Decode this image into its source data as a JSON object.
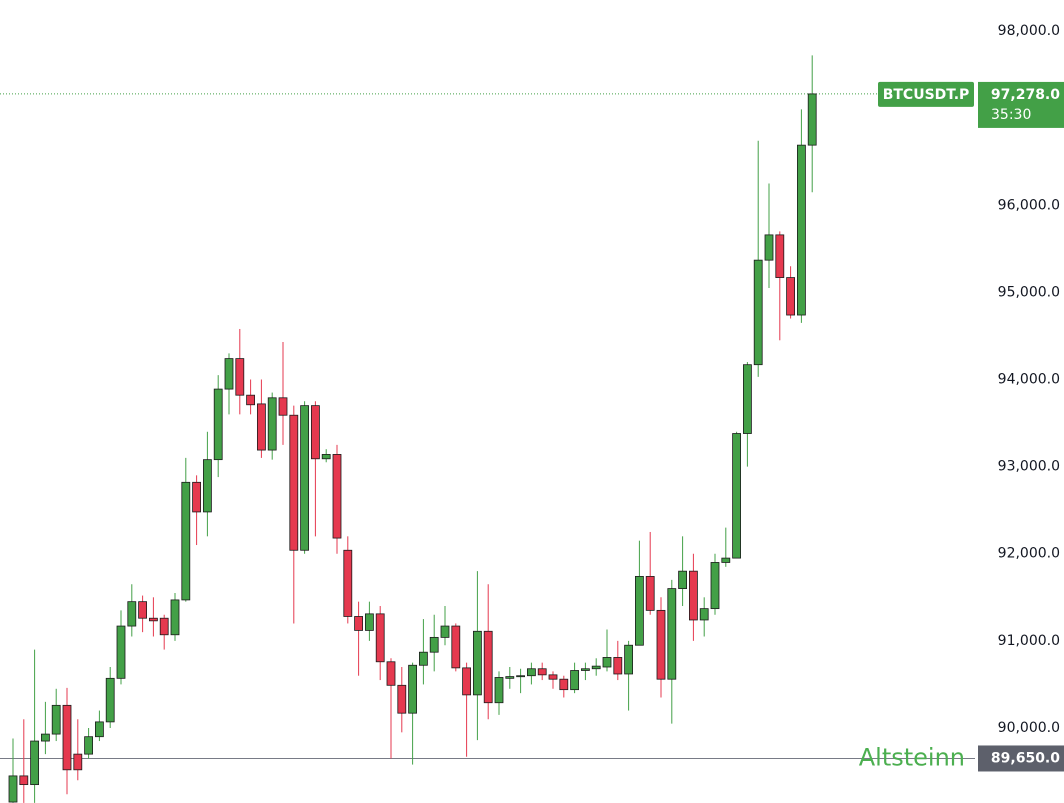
{
  "chart_data": {
    "type": "candlestick",
    "symbol": "BTCUSDT.P",
    "last_price": {
      "value": 97278,
      "label": "97,278.0"
    },
    "countdown": "35:30",
    "ylim": [
      89139,
      98356
    ],
    "yticks": [
      {
        "value": 90000,
        "label": "90,000.0"
      },
      {
        "value": 91000,
        "label": "91,000.0"
      },
      {
        "value": 92000,
        "label": "92,000.0"
      },
      {
        "value": 93000,
        "label": "93,000.0"
      },
      {
        "value": 94000,
        "label": "94,000.0"
      },
      {
        "value": 95000,
        "label": "95,000.0"
      },
      {
        "value": 96000,
        "label": "96,000.0"
      },
      {
        "value": 98000,
        "label": "98,000.0"
      }
    ],
    "colors": {
      "up": "#43a047",
      "down": "#e5394f"
    },
    "open": [
      89150,
      89450,
      89350,
      89850,
      89930,
      90260,
      89700,
      89700,
      89900,
      90070,
      90570,
      91170,
      91450,
      91260,
      91260,
      91070,
      91470,
      92820,
      92480,
      93080,
      93890,
      94240,
      93820,
      93720,
      93190,
      93790,
      93590,
      92040,
      93700,
      93090,
      93140,
      92040,
      91280,
      91120,
      91310,
      90760,
      90490,
      90170,
      90720,
      90870,
      91040,
      91170,
      90690,
      90380,
      91110,
      90290,
      90570,
      90590,
      90600,
      90680,
      90610,
      90560,
      90440,
      90660,
      90680,
      90700,
      90810,
      90620,
      90950,
      91740,
      91350,
      90560,
      91600,
      91800,
      91240,
      91370,
      91900,
      91950,
      93380,
      94170,
      95370,
      95660,
      95170,
      94740,
      96690
    ],
    "high": [
      89880,
      90100,
      90900,
      90300,
      90450,
      90460,
      90100,
      90000,
      90200,
      90700,
      91350,
      91650,
      91520,
      91500,
      91300,
      91550,
      93100,
      92900,
      93400,
      94050,
      94300,
      94580,
      94000,
      94000,
      93850,
      94430,
      93700,
      93750,
      93750,
      93200,
      93250,
      92200,
      91450,
      91450,
      91400,
      90800,
      90700,
      90750,
      91250,
      91300,
      91400,
      91200,
      90750,
      91800,
      91650,
      90650,
      90700,
      90680,
      90750,
      90750,
      90650,
      90600,
      90750,
      90750,
      90800,
      91130,
      91000,
      91000,
      92150,
      92250,
      91500,
      91700,
      92200,
      92000,
      91500,
      92000,
      92300,
      93400,
      94200,
      96740,
      96250,
      95700,
      95300,
      97100,
      97720
    ],
    "low": [
      89140,
      89140,
      89140,
      89700,
      89850,
      89240,
      89400,
      89650,
      89850,
      90000,
      90500,
      91050,
      91100,
      91050,
      90900,
      91000,
      91450,
      92100,
      92200,
      92880,
      93600,
      93600,
      93600,
      93100,
      93080,
      93250,
      91200,
      92000,
      92200,
      93050,
      92000,
      91200,
      90600,
      91000,
      90550,
      89650,
      89950,
      89580,
      90500,
      90650,
      90950,
      90650,
      89670,
      89860,
      90100,
      90150,
      90450,
      90400,
      90500,
      90550,
      90450,
      90350,
      90400,
      90550,
      90600,
      90650,
      90550,
      90200,
      90950,
      91300,
      90350,
      90050,
      91400,
      91000,
      91050,
      91300,
      91850,
      91950,
      93000,
      94030,
      95050,
      94450,
      94700,
      94650,
      96150
    ],
    "close": [
      89450,
      89350,
      89850,
      89930,
      90260,
      89520,
      89520,
      89900,
      90070,
      90570,
      91170,
      91450,
      91260,
      91230,
      91070,
      91470,
      92820,
      92480,
      93080,
      93890,
      94240,
      93820,
      93710,
      93190,
      93790,
      93590,
      92040,
      93700,
      93090,
      93140,
      92180,
      91280,
      91120,
      91310,
      90760,
      90490,
      90170,
      90720,
      90870,
      91040,
      91170,
      90690,
      90380,
      91110,
      90290,
      90580,
      90590,
      90600,
      90680,
      90610,
      90560,
      90440,
      90660,
      90680,
      90710,
      90810,
      90620,
      90950,
      91740,
      91350,
      90560,
      91600,
      91800,
      91240,
      91370,
      91900,
      91950,
      93380,
      94170,
      95370,
      95660,
      95170,
      94740,
      96690,
      97278
    ],
    "level": {
      "name": "Altsteinn",
      "value": 89650,
      "label": "89,650.0",
      "color": "#4caf50"
    }
  }
}
